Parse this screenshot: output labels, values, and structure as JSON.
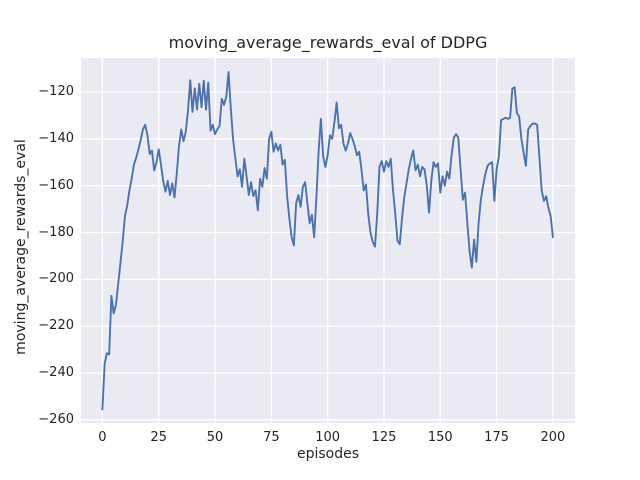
{
  "chart": {
    "title": "moving_average_rewards_eval of DDPG",
    "xlabel": "episodes",
    "ylabel": "moving_average_rewards_eval"
  },
  "chart_data": {
    "type": "line",
    "title": "moving_average_rewards_eval of DDPG",
    "xlabel": "episodes",
    "ylabel": "moving_average_rewards_eval",
    "grid": true,
    "legend": null,
    "style": "seaborn-darkgrid",
    "line_color": "#4c72b0",
    "plot_bg": "#eaeaf2",
    "grid_color": "#ffffff",
    "text_color": "#262626",
    "xlim": [
      -9.5,
      209.8
    ],
    "ylim": [
      -261.3,
      -105.5
    ],
    "xticks": [
      0,
      25,
      50,
      75,
      100,
      125,
      150,
      175,
      200
    ],
    "yticks": [
      -120,
      -140,
      -160,
      -180,
      -200,
      -220,
      -240,
      -260
    ],
    "x": [
      0,
      1,
      2,
      3,
      4,
      5,
      6,
      7,
      8,
      9,
      10,
      11,
      12,
      13,
      14,
      15,
      16,
      17,
      18,
      19,
      20,
      21,
      22,
      23,
      24,
      25,
      26,
      27,
      28,
      29,
      30,
      31,
      32,
      33,
      34,
      35,
      36,
      37,
      38,
      39,
      40,
      41,
      42,
      43,
      44,
      45,
      46,
      47,
      48,
      49,
      50,
      51,
      52,
      53,
      54,
      55,
      56,
      57,
      58,
      59,
      60,
      61,
      62,
      63,
      64,
      65,
      66,
      67,
      68,
      69,
      70,
      71,
      72,
      73,
      74,
      75,
      76,
      77,
      78,
      79,
      80,
      81,
      82,
      83,
      84,
      85,
      86,
      87,
      88,
      89,
      90,
      91,
      92,
      93,
      94,
      95,
      96,
      97,
      98,
      99,
      100,
      101,
      102,
      103,
      104,
      105,
      106,
      107,
      108,
      109,
      110,
      111,
      112,
      113,
      114,
      115,
      116,
      117,
      118,
      119,
      120,
      121,
      122,
      123,
      124,
      125,
      126,
      127,
      128,
      129,
      130,
      131,
      132,
      133,
      134,
      135,
      136,
      137,
      138,
      139,
      140,
      141,
      142,
      143,
      144,
      145,
      146,
      147,
      148,
      149,
      150,
      151,
      152,
      153,
      154,
      155,
      156,
      157,
      158,
      159,
      160,
      161,
      162,
      163,
      164,
      165,
      166,
      167,
      168,
      169,
      170,
      171,
      172,
      173,
      174,
      175,
      176,
      177,
      178,
      179,
      180,
      181,
      182,
      183,
      184,
      185,
      186,
      187,
      188,
      189,
      190,
      191,
      192,
      193,
      194,
      195,
      196,
      197,
      198,
      199,
      200
    ],
    "y": [
      -255.5,
      -236,
      -231.5,
      -232,
      -207,
      -214.5,
      -211,
      -202,
      -193,
      -184,
      -173,
      -168.5,
      -162,
      -157,
      -151,
      -148,
      -144.5,
      -140.5,
      -136,
      -134,
      -138.5,
      -146.5,
      -145,
      -153.5,
      -150,
      -144.5,
      -151,
      -158,
      -162.5,
      -158,
      -164,
      -159,
      -165,
      -155,
      -143,
      -136,
      -141,
      -137,
      -128,
      -115,
      -128.5,
      -118.5,
      -127.5,
      -116.5,
      -126.5,
      -115.2,
      -127.5,
      -116,
      -136.5,
      -134,
      -138,
      -136,
      -134.5,
      -123,
      -125.5,
      -122,
      -111.5,
      -127,
      -140,
      -148,
      -156,
      -153,
      -160.5,
      -148.5,
      -156,
      -164,
      -158.5,
      -164.5,
      -162,
      -170.5,
      -157,
      -160.5,
      -152.5,
      -157,
      -140,
      -137,
      -145.5,
      -142,
      -145,
      -142.5,
      -151,
      -149,
      -164.5,
      -174,
      -182,
      -185.5,
      -167.5,
      -164,
      -169,
      -160.5,
      -158.5,
      -167.5,
      -176,
      -172.5,
      -182,
      -165,
      -145,
      -131.5,
      -147.5,
      -152,
      -147,
      -138.5,
      -140,
      -133,
      -124.5,
      -135.5,
      -134,
      -142,
      -145,
      -142,
      -137.5,
      -140,
      -143,
      -147,
      -145.5,
      -153,
      -162,
      -159.5,
      -172,
      -180,
      -184,
      -186,
      -172,
      -152,
      -149.5,
      -154,
      -149.5,
      -152,
      -148.5,
      -162,
      -172,
      -183.5,
      -185,
      -174,
      -165,
      -159,
      -153,
      -148.5,
      -145,
      -153.5,
      -151,
      -156,
      -152,
      -153,
      -160,
      -171.5,
      -158,
      -150,
      -152,
      -150.5,
      -163,
      -156,
      -160,
      -154,
      -157,
      -147,
      -139.5,
      -138,
      -139.5,
      -153,
      -166,
      -163,
      -176,
      -188,
      -195,
      -183,
      -192.5,
      -176,
      -166,
      -160,
      -155,
      -151.5,
      -150.5,
      -150,
      -166.5,
      -153,
      -147.5,
      -132,
      -131.5,
      -131,
      -131.5,
      -131,
      -118.5,
      -118,
      -129,
      -130.5,
      -140,
      -146,
      -151.5,
      -136,
      -134.5,
      -133.5,
      -133.5,
      -134,
      -148,
      -162,
      -166.5,
      -164.5,
      -169.5,
      -173,
      -182
    ]
  }
}
